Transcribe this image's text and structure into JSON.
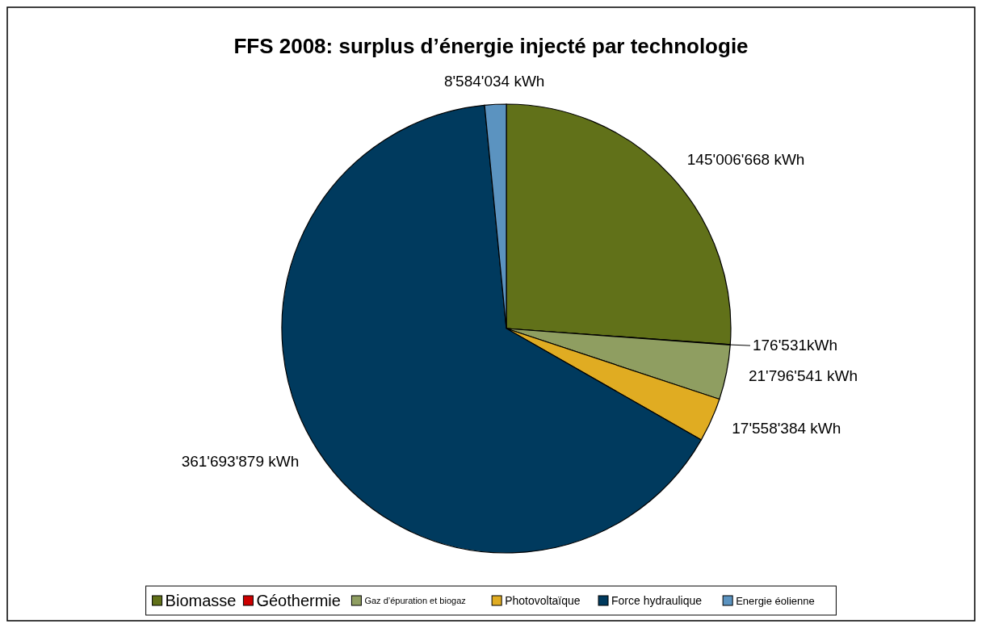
{
  "chart_data": {
    "type": "pie",
    "title": "FFS 2008: surplus d’énergie injecté par technologie",
    "categories": [
      "Biomasse",
      "Géothermie",
      "Gaz d’épuration et biogaz",
      "Photovoltaïque",
      "Force hydraulique",
      "Energie éolienne"
    ],
    "values": [
      145006668,
      176531,
      21796541,
      17558384,
      361693879,
      8584034
    ],
    "colors": [
      "#617119",
      "#cc0000",
      "#8f9e61",
      "#e0ac22",
      "#003a5e",
      "#5b93c0"
    ],
    "value_labels": [
      "145'006'668 kWh",
      "176'531kWh",
      "21'796'541 kWh",
      "17'558'384 kWh",
      "361'693'879 kWh",
      "8'584'034 kWh"
    ],
    "legend": "bottom"
  }
}
